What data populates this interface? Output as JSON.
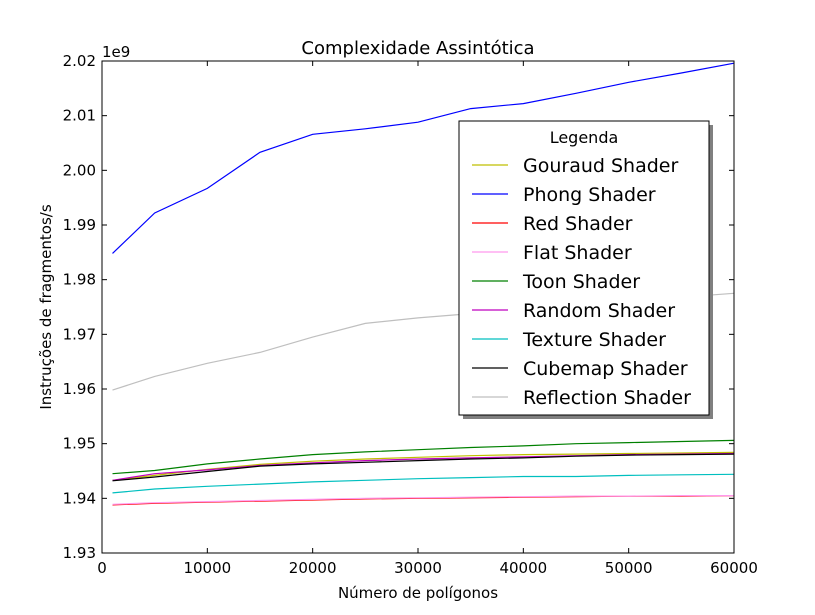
{
  "chart_data": {
    "type": "line",
    "title": "Complexidade Assintótica",
    "xlabel": "Número de polígonos",
    "ylabel": "Instruções de fragmentos/s",
    "y_offset_label": "1e9",
    "y_multiplier": 1000000000,
    "xlim": [
      0,
      60000
    ],
    "ylim": [
      1.93,
      2.02
    ],
    "x_ticks": [
      0,
      10000,
      20000,
      30000,
      40000,
      50000,
      60000
    ],
    "x_tick_labels": [
      "0",
      "10000",
      "20000",
      "30000",
      "40000",
      "50000",
      "60000"
    ],
    "y_ticks": [
      1.93,
      1.94,
      1.95,
      1.96,
      1.97,
      1.98,
      1.99,
      2.0,
      2.01,
      2.02
    ],
    "y_tick_labels": [
      "1.93",
      "1.94",
      "1.95",
      "1.96",
      "1.97",
      "1.98",
      "1.99",
      "2.00",
      "2.01",
      "2.02"
    ],
    "grid": false,
    "legend_title": "Legenda",
    "legend_position": "upper-right",
    "x": [
      1000,
      5000,
      10000,
      15000,
      20000,
      25000,
      30000,
      35000,
      40000,
      45000,
      50000,
      55000,
      60000
    ],
    "series": [
      {
        "name": "Gouraud Shader",
        "color": "#bfbf00",
        "values": [
          1.9433,
          1.9442,
          1.9453,
          1.9462,
          1.9468,
          1.9472,
          1.9475,
          1.9478,
          1.948,
          1.9481,
          1.9482,
          1.9483,
          1.9484
        ]
      },
      {
        "name": "Phong Shader",
        "color": "#0000ff",
        "values": [
          1.9848,
          1.9922,
          1.9967,
          2.0033,
          2.0066,
          2.0076,
          2.0088,
          2.0113,
          2.0122,
          2.0141,
          2.0161,
          2.0178,
          2.0196
        ]
      },
      {
        "name": "Red Shader",
        "color": "#ff0000",
        "values": [
          1.9388,
          1.9391,
          1.9393,
          1.9395,
          1.9397,
          1.9399,
          1.94,
          1.9401,
          1.9402,
          1.9403,
          1.9404,
          1.9404,
          1.9405
        ]
      },
      {
        "name": "Flat Shader",
        "color": "#ff99ee",
        "values": [
          1.9389,
          1.9392,
          1.9394,
          1.9396,
          1.9398,
          1.94,
          1.9401,
          1.9402,
          1.9403,
          1.9404,
          1.9404,
          1.9405,
          1.9405
        ]
      },
      {
        "name": "Toon Shader",
        "color": "#008000",
        "values": [
          1.9445,
          1.9451,
          1.9463,
          1.9472,
          1.948,
          1.9485,
          1.9489,
          1.9493,
          1.9496,
          1.95,
          1.9502,
          1.9504,
          1.9506
        ]
      },
      {
        "name": "Random Shader",
        "color": "#bf00bf",
        "values": [
          1.9433,
          1.9445,
          1.9452,
          1.946,
          1.9465,
          1.9469,
          1.9472,
          1.9474,
          1.9476,
          1.9478,
          1.948,
          1.9481,
          1.9482
        ]
      },
      {
        "name": "Texture Shader",
        "color": "#00bfbf",
        "values": [
          1.941,
          1.9417,
          1.9422,
          1.9426,
          1.943,
          1.9433,
          1.9436,
          1.9438,
          1.944,
          1.944,
          1.9442,
          1.9443,
          1.9444
        ]
      },
      {
        "name": "Cubemap Shader",
        "color": "#000000",
        "values": [
          1.9432,
          1.9439,
          1.9449,
          1.9459,
          1.9463,
          1.9466,
          1.9469,
          1.9472,
          1.9474,
          1.9477,
          1.9479,
          1.948,
          1.9481
        ]
      },
      {
        "name": "Reflection Shader",
        "color": "#bfbfbf",
        "values": [
          1.9598,
          1.9623,
          1.9647,
          1.9667,
          1.9695,
          1.972,
          1.973,
          1.9738,
          1.9745,
          1.9752,
          1.976,
          1.9768,
          1.9775
        ]
      }
    ]
  }
}
